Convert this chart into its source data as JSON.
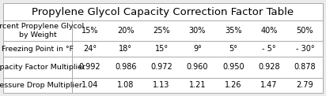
{
  "title": "Propylene Glycol Capacity Correction Factor Table",
  "rows": [
    {
      "label": "Percent Propylene Glycol\nby Weight",
      "values": [
        "15%",
        "20%",
        "25%",
        "30%",
        "35%",
        "40%",
        "50%"
      ]
    },
    {
      "label": "Freezing Point in °F",
      "values": [
        "24°",
        "18°",
        "15°",
        "9°",
        "5°",
        "- 5°",
        "- 30°"
      ]
    },
    {
      "label": "Capacity Factor Multiplier",
      "values": [
        "0.992",
        "0.986",
        "0.972",
        "0.960",
        "0.950",
        "0.928",
        "0.878"
      ]
    },
    {
      "label": "Pressure Drop Multiplier",
      "values": [
        "1.04",
        "1.08",
        "1.13",
        "1.21",
        "1.26",
        "1.47",
        "2.79"
      ]
    }
  ],
  "bg_color": "#ebebeb",
  "border_color": "#aaaaaa",
  "title_fontsize": 9.5,
  "cell_fontsize": 7.0,
  "label_fontsize": 6.8
}
